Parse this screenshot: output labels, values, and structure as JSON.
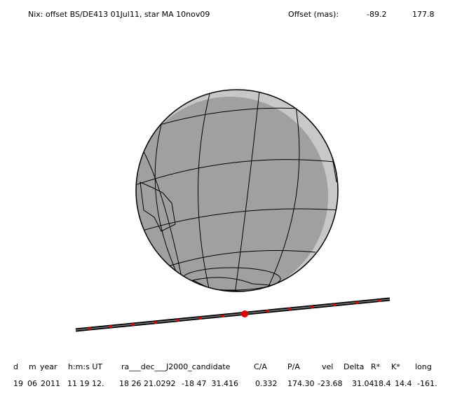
{
  "title": "Nix: offset BS/DE413 01Jul11, star MA 10nov09",
  "offset": {
    "label": "Offset (mas):",
    "values": [
      "-89.2",
      "177.8"
    ]
  },
  "table": {
    "header": [
      "d",
      "m",
      "year",
      "h:m:s UT",
      "ra___dec___J2000_candidate",
      "C/A",
      "P/A",
      "vel",
      "Delta",
      "R*",
      "K*",
      "long"
    ],
    "row": [
      "19",
      "06",
      "2011",
      "11 19 12.",
      "18 26 21.0292",
      "-18 47  31.416",
      "0.332",
      "174.30",
      "-23.68",
      "31.04",
      "18.4",
      "14.4",
      "-161."
    ]
  }
}
